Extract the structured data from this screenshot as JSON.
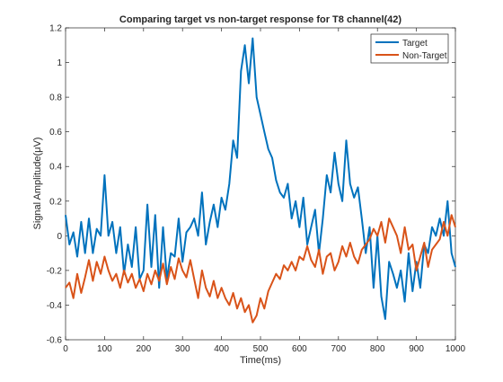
{
  "chart_data": {
    "type": "line",
    "title": "Comparing target vs non-target response for T8 channel(42)",
    "xlabel": "Time(ms)",
    "ylabel": "Signal Amplitude(μV)",
    "xlim": [
      0,
      1000
    ],
    "ylim": [
      -0.6,
      1.2
    ],
    "xticks": [
      0,
      100,
      200,
      300,
      400,
      500,
      600,
      700,
      800,
      900,
      1000
    ],
    "yticks": [
      -0.6,
      -0.4,
      -0.2,
      0,
      0.2,
      0.4,
      0.6,
      0.8,
      1,
      1.2
    ],
    "xtick_labels": [
      "0",
      "100",
      "200",
      "300",
      "400",
      "500",
      "600",
      "700",
      "800",
      "900",
      "1000"
    ],
    "ytick_labels": [
      "-0.6",
      "-0.4",
      "-0.2",
      "0",
      "0.2",
      "0.4",
      "0.6",
      "0.8",
      "1",
      "1.2"
    ],
    "grid": false,
    "legend_position": "top-right",
    "series": [
      {
        "name": "Target",
        "color": "#0072BD",
        "x": [
          0,
          10,
          20,
          30,
          40,
          50,
          60,
          70,
          80,
          90,
          100,
          110,
          120,
          130,
          140,
          150,
          160,
          170,
          180,
          190,
          200,
          210,
          220,
          230,
          240,
          250,
          260,
          270,
          280,
          290,
          300,
          310,
          320,
          330,
          340,
          350,
          360,
          370,
          380,
          390,
          400,
          410,
          420,
          430,
          440,
          450,
          460,
          470,
          480,
          490,
          500,
          510,
          520,
          530,
          540,
          550,
          560,
          570,
          580,
          590,
          600,
          610,
          620,
          630,
          640,
          650,
          660,
          670,
          680,
          690,
          700,
          710,
          720,
          730,
          740,
          750,
          760,
          770,
          780,
          790,
          800,
          810,
          820,
          830,
          840,
          850,
          860,
          870,
          880,
          890,
          900,
          910,
          920,
          930,
          940,
          950,
          960,
          970,
          980,
          990,
          1000
        ],
        "y": [
          0.12,
          -0.05,
          0.02,
          -0.12,
          0.08,
          -0.1,
          0.1,
          -0.1,
          0.04,
          0.0,
          0.35,
          0.0,
          0.08,
          -0.1,
          0.05,
          -0.22,
          -0.05,
          -0.18,
          0.05,
          -0.25,
          -0.2,
          0.18,
          -0.18,
          0.12,
          -0.3,
          0.05,
          -0.25,
          -0.1,
          -0.12,
          0.1,
          -0.15,
          0.02,
          0.05,
          0.1,
          0.0,
          0.25,
          -0.05,
          0.08,
          0.18,
          0.05,
          0.22,
          0.15,
          0.3,
          0.55,
          0.45,
          0.95,
          1.1,
          0.88,
          1.14,
          0.8,
          0.7,
          0.6,
          0.5,
          0.45,
          0.32,
          0.25,
          0.22,
          0.3,
          0.1,
          0.2,
          0.05,
          0.22,
          -0.05,
          0.05,
          0.15,
          -0.1,
          0.1,
          0.35,
          0.25,
          0.48,
          0.3,
          0.2,
          0.55,
          0.3,
          0.22,
          0.28,
          0.1,
          -0.1,
          0.05,
          -0.3,
          0.0,
          -0.35,
          -0.48,
          -0.15,
          -0.22,
          -0.3,
          -0.2,
          -0.38,
          -0.1,
          -0.32,
          -0.15,
          -0.3,
          -0.05,
          -0.1,
          0.05,
          0.0,
          0.1,
          0.0,
          0.2,
          -0.1,
          -0.18
        ]
      },
      {
        "name": "Non-Target",
        "color": "#D95319",
        "x": [
          0,
          10,
          20,
          30,
          40,
          50,
          60,
          70,
          80,
          90,
          100,
          110,
          120,
          130,
          140,
          150,
          160,
          170,
          180,
          190,
          200,
          210,
          220,
          230,
          240,
          250,
          260,
          270,
          280,
          290,
          300,
          310,
          320,
          330,
          340,
          350,
          360,
          370,
          380,
          390,
          400,
          410,
          420,
          430,
          440,
          450,
          460,
          470,
          480,
          490,
          500,
          510,
          520,
          530,
          540,
          550,
          560,
          570,
          580,
          590,
          600,
          610,
          620,
          630,
          640,
          650,
          660,
          670,
          680,
          690,
          700,
          710,
          720,
          730,
          740,
          750,
          760,
          770,
          780,
          790,
          800,
          810,
          820,
          830,
          840,
          850,
          860,
          870,
          880,
          890,
          900,
          910,
          920,
          930,
          940,
          950,
          960,
          970,
          980,
          990,
          1000
        ],
        "y": [
          -0.3,
          -0.27,
          -0.36,
          -0.22,
          -0.33,
          -0.24,
          -0.14,
          -0.26,
          -0.15,
          -0.22,
          -0.12,
          -0.2,
          -0.26,
          -0.22,
          -0.3,
          -0.2,
          -0.27,
          -0.22,
          -0.3,
          -0.25,
          -0.32,
          -0.22,
          -0.28,
          -0.2,
          -0.26,
          -0.16,
          -0.28,
          -0.18,
          -0.25,
          -0.13,
          -0.2,
          -0.24,
          -0.14,
          -0.25,
          -0.36,
          -0.2,
          -0.3,
          -0.35,
          -0.26,
          -0.36,
          -0.3,
          -0.36,
          -0.4,
          -0.33,
          -0.42,
          -0.36,
          -0.44,
          -0.4,
          -0.5,
          -0.46,
          -0.36,
          -0.42,
          -0.32,
          -0.27,
          -0.22,
          -0.25,
          -0.17,
          -0.2,
          -0.15,
          -0.2,
          -0.12,
          -0.14,
          -0.06,
          -0.14,
          -0.18,
          -0.08,
          -0.22,
          -0.12,
          -0.1,
          -0.2,
          -0.15,
          -0.06,
          -0.12,
          -0.04,
          -0.12,
          -0.16,
          -0.08,
          -0.05,
          -0.02,
          0.04,
          0.0,
          0.08,
          -0.04,
          0.1,
          0.05,
          0.0,
          -0.1,
          0.05,
          -0.08,
          -0.05,
          -0.2,
          -0.12,
          -0.04,
          -0.18,
          -0.08,
          -0.05,
          -0.02,
          0.08,
          0.0,
          0.12,
          0.05
        ]
      }
    ]
  }
}
